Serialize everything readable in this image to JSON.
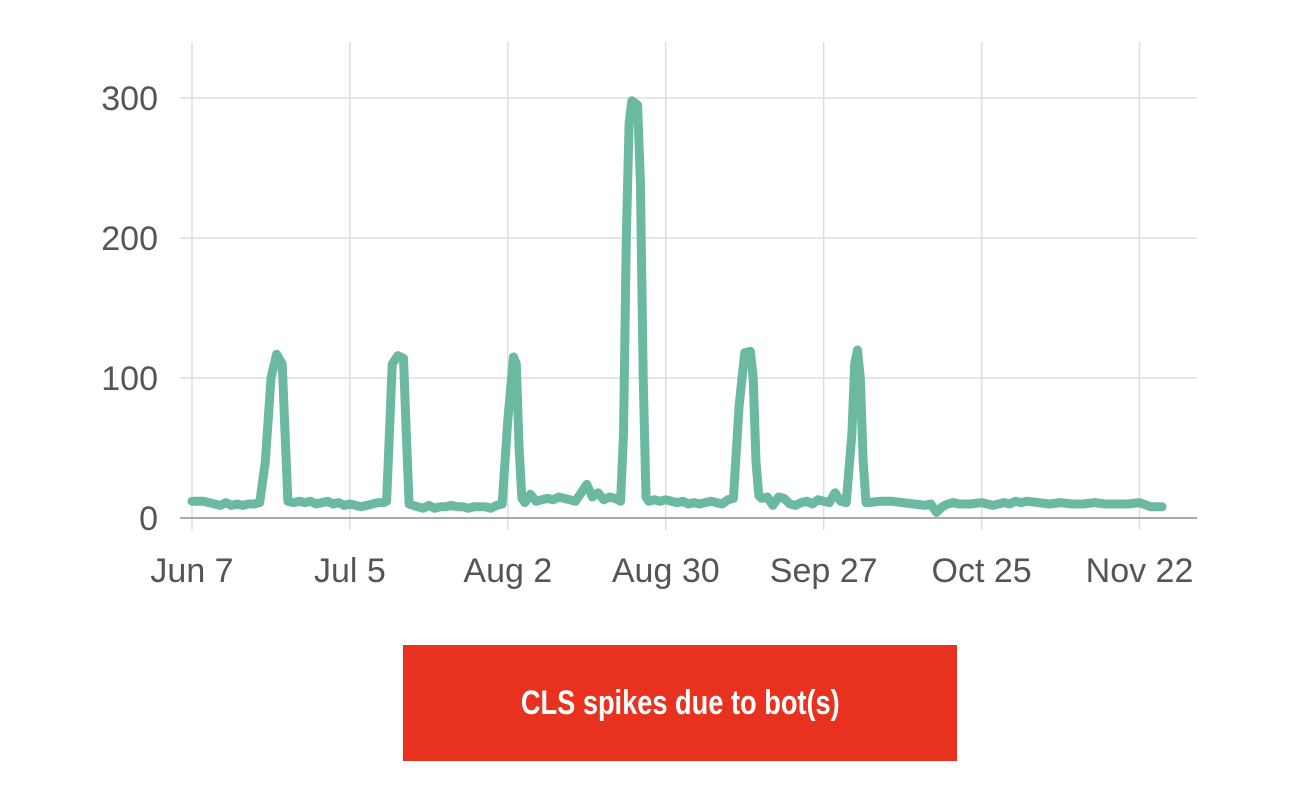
{
  "chart_data": {
    "type": "line",
    "title": "",
    "xlabel": "",
    "ylabel": "",
    "x_tick_labels": [
      "Jun 7",
      "Jul 5",
      "Aug 2",
      "Aug 30",
      "Sep 27",
      "Oct 25",
      "Nov 22"
    ],
    "y_ticks": [
      0,
      100,
      200,
      300
    ],
    "ylim": [
      0,
      340
    ],
    "xlim_days": [
      0,
      172
    ],
    "grid": true,
    "legend": "none",
    "series": [
      {
        "color": "#6bb9a1",
        "points": [
          [
            0,
            12
          ],
          [
            2,
            12
          ],
          [
            4,
            10
          ],
          [
            5,
            9
          ],
          [
            6,
            11
          ],
          [
            7,
            9
          ],
          [
            8,
            10
          ],
          [
            9,
            9
          ],
          [
            10,
            10
          ],
          [
            11,
            10
          ],
          [
            12,
            11
          ],
          [
            13,
            40
          ],
          [
            14,
            100
          ],
          [
            15,
            117
          ],
          [
            16,
            110
          ],
          [
            16.5,
            60
          ],
          [
            17,
            12
          ],
          [
            18,
            11
          ],
          [
            19,
            12
          ],
          [
            20,
            11
          ],
          [
            21,
            12
          ],
          [
            22,
            10
          ],
          [
            23,
            11
          ],
          [
            24,
            12
          ],
          [
            25,
            10
          ],
          [
            26,
            11
          ],
          [
            27,
            9
          ],
          [
            28,
            10
          ],
          [
            29,
            9
          ],
          [
            30,
            8
          ],
          [
            31,
            9
          ],
          [
            32,
            10
          ],
          [
            33,
            11
          ],
          [
            34,
            11
          ],
          [
            34.5,
            12
          ],
          [
            35,
            60
          ],
          [
            35.5,
            110
          ],
          [
            36.5,
            116
          ],
          [
            37.5,
            114
          ],
          [
            38,
            60
          ],
          [
            38.5,
            10
          ],
          [
            40,
            8
          ],
          [
            41,
            7
          ],
          [
            42,
            9
          ],
          [
            43,
            7
          ],
          [
            44,
            8
          ],
          [
            45,
            8
          ],
          [
            46,
            9
          ],
          [
            47,
            8
          ],
          [
            48,
            8
          ],
          [
            49,
            7
          ],
          [
            50,
            8
          ],
          [
            51,
            8
          ],
          [
            52,
            8
          ],
          [
            53,
            7
          ],
          [
            54,
            9
          ],
          [
            55,
            10
          ],
          [
            56,
            70
          ],
          [
            57,
            115
          ],
          [
            57.5,
            110
          ],
          [
            58,
            50
          ],
          [
            58.5,
            14
          ],
          [
            59,
            11
          ],
          [
            60,
            17
          ],
          [
            61,
            12
          ],
          [
            62,
            13
          ],
          [
            63,
            14
          ],
          [
            64,
            13
          ],
          [
            65,
            15
          ],
          [
            66,
            14
          ],
          [
            67,
            13
          ],
          [
            68,
            12
          ],
          [
            69,
            18
          ],
          [
            70,
            24
          ],
          [
            71,
            15
          ],
          [
            72,
            18
          ],
          [
            73,
            13
          ],
          [
            74,
            15
          ],
          [
            75,
            14
          ],
          [
            76,
            12
          ],
          [
            76.5,
            60
          ],
          [
            77,
            200
          ],
          [
            77.5,
            282
          ],
          [
            78,
            298
          ],
          [
            79,
            295
          ],
          [
            79.5,
            240
          ],
          [
            80,
            100
          ],
          [
            80.5,
            15
          ],
          [
            81,
            12
          ],
          [
            82,
            13
          ],
          [
            83,
            12
          ],
          [
            84,
            13
          ],
          [
            85,
            12
          ],
          [
            86,
            11
          ],
          [
            87,
            12
          ],
          [
            88,
            10
          ],
          [
            89,
            11
          ],
          [
            90,
            10
          ],
          [
            91,
            11
          ],
          [
            92,
            12
          ],
          [
            93,
            11
          ],
          [
            94,
            10
          ],
          [
            95,
            13
          ],
          [
            96,
            14
          ],
          [
            97,
            80
          ],
          [
            98,
            118
          ],
          [
            99,
            119
          ],
          [
            99.5,
            100
          ],
          [
            100,
            40
          ],
          [
            100.5,
            16
          ],
          [
            101,
            14
          ],
          [
            102,
            15
          ],
          [
            103,
            9
          ],
          [
            104,
            15
          ],
          [
            105,
            14
          ],
          [
            106,
            10
          ],
          [
            107,
            9
          ],
          [
            108,
            11
          ],
          [
            109,
            12
          ],
          [
            110,
            10
          ],
          [
            111,
            13
          ],
          [
            112,
            12
          ],
          [
            113,
            11
          ],
          [
            114,
            18
          ],
          [
            115,
            12
          ],
          [
            116,
            11
          ],
          [
            117,
            60
          ],
          [
            117.5,
            110
          ],
          [
            118,
            120
          ],
          [
            118.5,
            100
          ],
          [
            119,
            40
          ],
          [
            119.5,
            11
          ],
          [
            120,
            11
          ],
          [
            122,
            12
          ],
          [
            124,
            12
          ],
          [
            126,
            11
          ],
          [
            128,
            10
          ],
          [
            130,
            9
          ],
          [
            131,
            10
          ],
          [
            132,
            4
          ],
          [
            133,
            8
          ],
          [
            134,
            10
          ],
          [
            135,
            11
          ],
          [
            136,
            10
          ],
          [
            138,
            10
          ],
          [
            140,
            11
          ],
          [
            141,
            10
          ],
          [
            142,
            9
          ],
          [
            143,
            10
          ],
          [
            144,
            11
          ],
          [
            145,
            10
          ],
          [
            146,
            12
          ],
          [
            147,
            11
          ],
          [
            148,
            12
          ],
          [
            150,
            11
          ],
          [
            152,
            10
          ],
          [
            154,
            11
          ],
          [
            156,
            10
          ],
          [
            158,
            10
          ],
          [
            160,
            11
          ],
          [
            162,
            10
          ],
          [
            164,
            10
          ],
          [
            166,
            10
          ],
          [
            168,
            11
          ],
          [
            170,
            8
          ],
          [
            172,
            8
          ]
        ]
      }
    ]
  },
  "banner": {
    "text": "CLS spikes due to bot(s)",
    "background": "#e8321f"
  }
}
